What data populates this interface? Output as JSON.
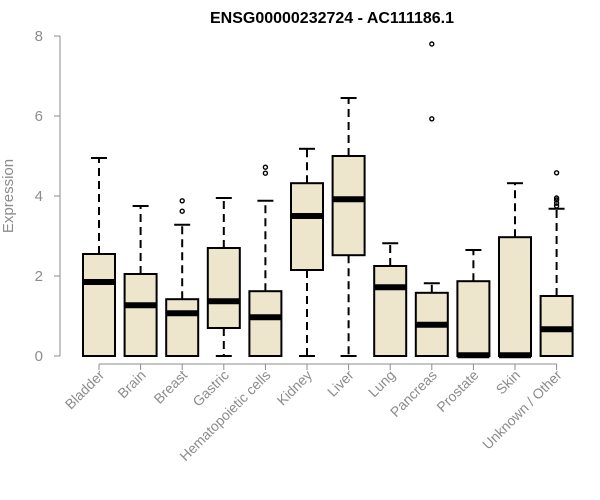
{
  "chart_data": {
    "type": "boxplot",
    "title": "ENSG00000232724 - AC111186.1",
    "xlabel": "",
    "ylabel": "Expression",
    "ylim": [
      0,
      8
    ],
    "yticks": [
      "0",
      "2",
      "4",
      "6",
      "8"
    ],
    "box_fill": "#ede5cc",
    "categories": [
      "Bladder",
      "Brain",
      "Breast",
      "Gastric",
      "Hematopoietic cells",
      "Kidney",
      "Liver",
      "Lung",
      "Pancreas",
      "Prostate",
      "Skin",
      "Unknown / Other"
    ],
    "boxes": [
      {
        "whisker_low": 0,
        "q1": 0,
        "median": 1.85,
        "q3": 2.55,
        "whisker_high": 4.95,
        "outliers": []
      },
      {
        "whisker_low": 0,
        "q1": 0,
        "median": 1.27,
        "q3": 2.05,
        "whisker_high": 3.75,
        "outliers": []
      },
      {
        "whisker_low": 0,
        "q1": 0,
        "median": 1.07,
        "q3": 1.42,
        "whisker_high": 3.28,
        "outliers": [
          3.62,
          3.88
        ]
      },
      {
        "whisker_low": 0,
        "q1": 0.7,
        "median": 1.37,
        "q3": 2.7,
        "whisker_high": 3.95,
        "outliers": []
      },
      {
        "whisker_low": 0,
        "q1": 0,
        "median": 0.97,
        "q3": 1.62,
        "whisker_high": 3.88,
        "outliers": [
          4.57,
          4.72
        ]
      },
      {
        "whisker_low": 0,
        "q1": 2.15,
        "median": 3.5,
        "q3": 4.32,
        "whisker_high": 5.18,
        "outliers": []
      },
      {
        "whisker_low": 0,
        "q1": 2.52,
        "median": 3.92,
        "q3": 5.0,
        "whisker_high": 6.45,
        "outliers": []
      },
      {
        "whisker_low": 0,
        "q1": 0,
        "median": 1.72,
        "q3": 2.25,
        "whisker_high": 2.82,
        "outliers": []
      },
      {
        "whisker_low": 0,
        "q1": 0,
        "median": 0.78,
        "q3": 1.58,
        "whisker_high": 1.82,
        "outliers": [
          5.93,
          7.8
        ]
      },
      {
        "whisker_low": 0,
        "q1": 0,
        "median": 0.02,
        "q3": 1.87,
        "whisker_high": 2.65,
        "outliers": []
      },
      {
        "whisker_low": 0,
        "q1": 0,
        "median": 0.02,
        "q3": 2.97,
        "whisker_high": 4.32,
        "outliers": []
      },
      {
        "whisker_low": 0,
        "q1": 0,
        "median": 0.67,
        "q3": 1.5,
        "whisker_high": 3.68,
        "outliers": [
          3.75,
          3.82,
          3.9,
          3.95,
          4.58
        ]
      }
    ]
  }
}
